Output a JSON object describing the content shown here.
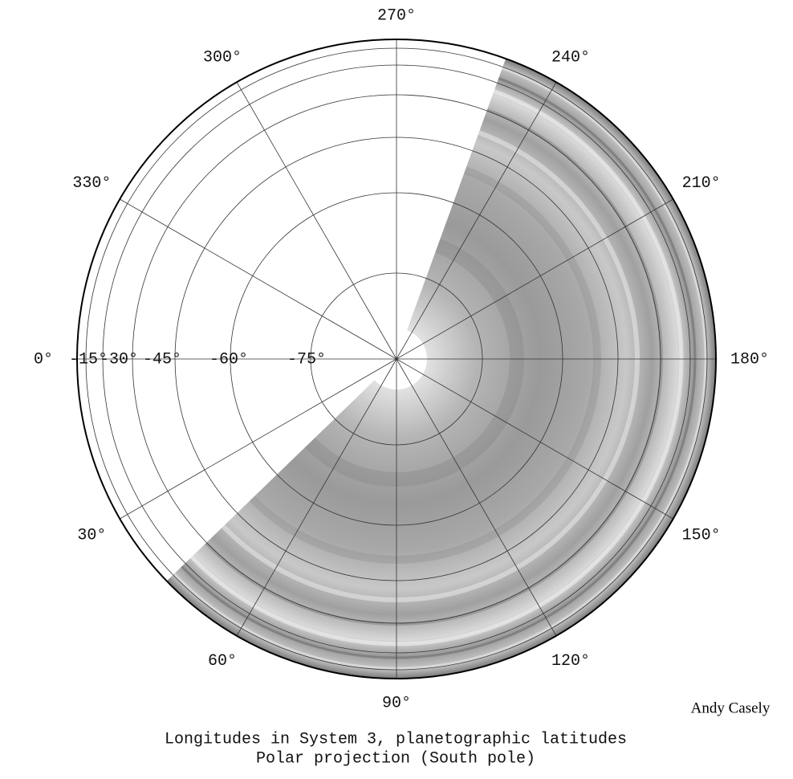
{
  "longitude_labels": [
    "0°",
    "30°",
    "60°",
    "90°",
    "120°",
    "150°",
    "180°",
    "210°",
    "240°",
    "270°",
    "300°",
    "330°"
  ],
  "latitude_labels": [
    "-15°",
    "-30°",
    "-45°",
    "-60°",
    "-75°"
  ],
  "caption": [
    "Longitudes in System 3, planetographic latitudes",
    "Polar projection (South pole)"
  ],
  "credit": "Andy Casely"
}
